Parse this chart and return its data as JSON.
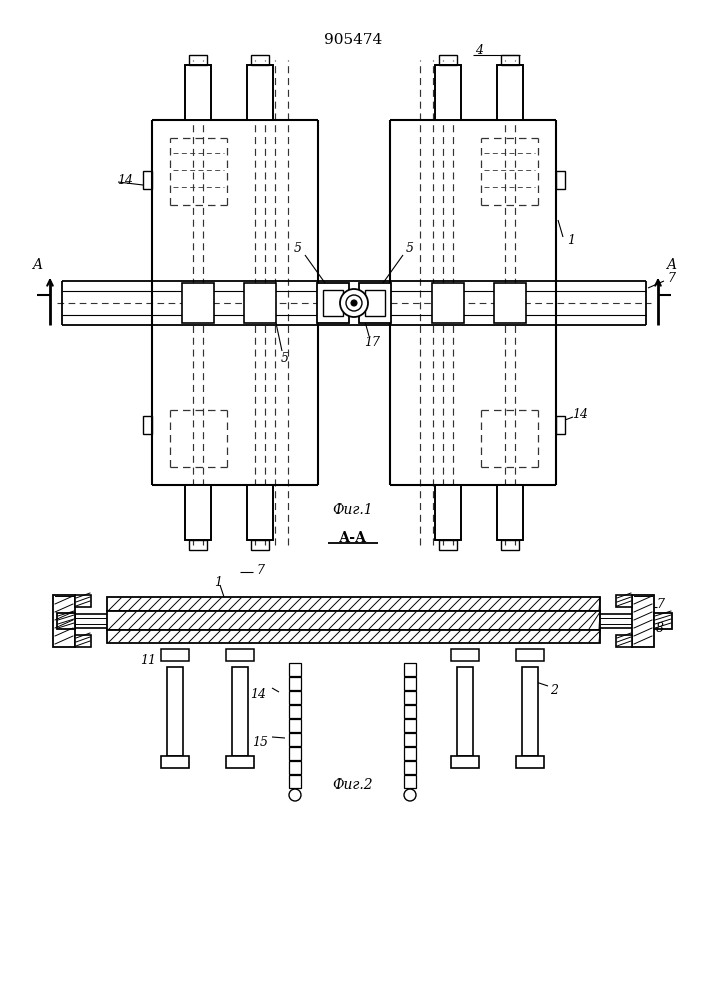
{
  "title": "905474",
  "fig1_label": "Фиг.1",
  "fig2_label": "Фиг.2",
  "section_label": "А-А",
  "bg_color": "#ffffff"
}
